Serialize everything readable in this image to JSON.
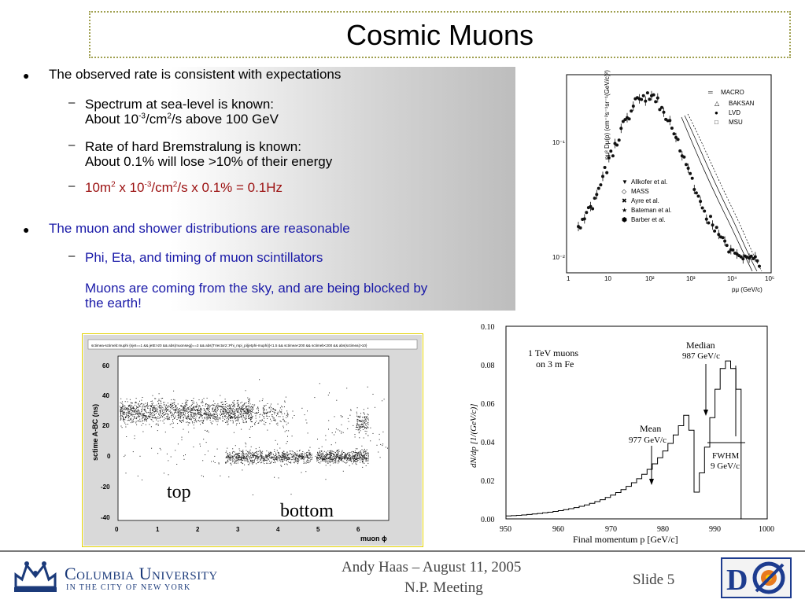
{
  "title": "Cosmic Muons",
  "bullets": [
    {
      "text": "The observed rate is consistent with expectations",
      "sub": [
        {
          "line1": "Spectrum at sea-level is known:",
          "line2_prefix": "About 10",
          "line2_sup1": "-3",
          "line2_mid": "/cm",
          "line2_sup2": "2",
          "line2_suffix": "/s above 100 GeV"
        },
        {
          "line1": "Rate of hard Bremstralung is known:",
          "line2": "About 0.1% will lose >10% of their energy"
        },
        {
          "p1": "10m",
          "s1": "2",
          "p2": " x 10",
          "s2": "-3",
          "p3": "/cm",
          "s3": "2",
          "p4": "/s x 0.1% = 0.1Hz"
        }
      ]
    },
    {
      "text": "The muon and shower distributions are reasonable",
      "sub": [
        {
          "line1": "Phi, Eta, and timing of muon scintillators",
          "line2": "Muons are coming from the sky, and are being blocked by",
          "line3": "the earth!"
        }
      ]
    }
  ],
  "spectrum_plot": {
    "ylabel": "pμ³ Dμ(p) (cm⁻²s⁻¹sr⁻¹(GeV/c)²)",
    "xlabel": "pμ (GeV/c)",
    "y_ticks": [
      "10⁻¹",
      "10⁻²"
    ],
    "x_ticks": [
      "1",
      "10",
      "10²",
      "10³",
      "10⁴",
      "10⁵"
    ],
    "legend_top": [
      "MACRO",
      "BAKSAN",
      "LVD",
      "MSU"
    ],
    "legend_top_symbols": [
      "═",
      "△",
      "●",
      "□"
    ],
    "legend_bottom": [
      "Allkofer et al.",
      "MASS",
      "Ayre et al.",
      "Bateman et al.",
      "Barber et al."
    ],
    "legend_bottom_symbols": [
      "▼",
      "◇",
      "✖",
      "★",
      "⬢"
    ],
    "x_scale": "log",
    "y_scale": "log"
  },
  "scatter_plot": {
    "header": "sctimea-sctimeb:muphi {njet==1 && jetE>20 && abs(muonsegj)==3 && abs(TVector2::Phi_mpi_pi(jetphi-muphi))<1.5 && sctimea<200 && sctimeb<200 && abs(sctimea)>10}",
    "ylabel": "sctime A-BC (ns)",
    "xlabel": "muon ϕ",
    "y_ticks": [
      "60",
      "40",
      "20",
      "0",
      "-20",
      "-40"
    ],
    "x_ticks": [
      "0",
      "1",
      "2",
      "3",
      "4",
      "5",
      "6"
    ],
    "label_top": "top",
    "label_bottom": "bottom"
  },
  "energy_loss_plot": {
    "ylabel": "dN/dp  [1/(GeV/c)]",
    "xlabel": "Final momentum  p  [GeV/c]",
    "y_ticks": [
      "0.10",
      "0.08",
      "0.06",
      "0.04",
      "0.02",
      "0.00"
    ],
    "x_ticks": [
      "950",
      "960",
      "970",
      "980",
      "990",
      "1000"
    ],
    "note1": "1 TeV muons",
    "note2": "on 3 m Fe",
    "median1": "Median",
    "median2": "987 GeV/c",
    "mean1": "Mean",
    "mean2": "977 GeV/c",
    "fwhm1": "FWHM",
    "fwhm2": "9 GeV/c"
  },
  "footer": {
    "uni_line1": "Columbia University",
    "uni_line2": "IN THE CITY OF NEW YORK",
    "author": "Andy Haas – August 11, 2005",
    "meeting": "N.P. Meeting",
    "slide": "Slide 5",
    "colors": {
      "columbia_blue": "#1b3a7a",
      "d0_blue": "#1d3c8f",
      "d0_orange": "#e87a1e"
    }
  }
}
